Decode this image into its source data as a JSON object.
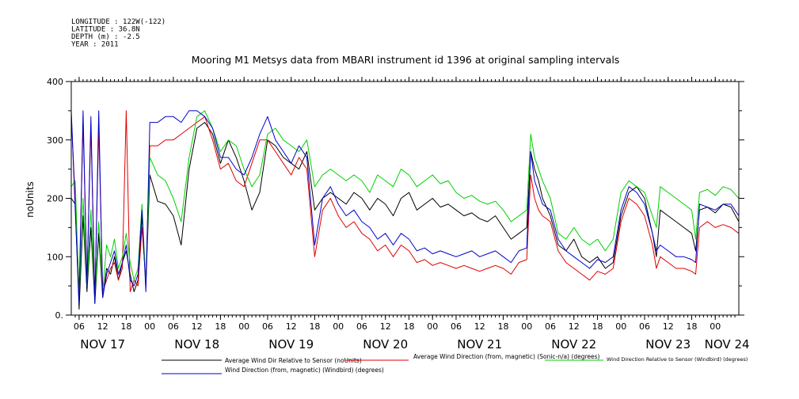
{
  "header": {
    "meta_lines": [
      "LONGITUDE : 122W(-122)",
      "LATITUDE : 36.8N",
      "DEPTH (m) : -2.5",
      "YEAR : 2011"
    ]
  },
  "chart_data": {
    "type": "line",
    "title": "Mooring M1 Metsys data from MBARI instrument id 1396 at original sampling intervals",
    "ylabel": "noUnits",
    "xlabel": "",
    "ylim": [
      0,
      400
    ],
    "y_ticks": [
      0,
      100,
      200,
      300,
      400
    ],
    "y_tick_labels": [
      "0.",
      "100",
      "200",
      "300",
      "400"
    ],
    "x_range_hours": [
      0,
      170
    ],
    "x_hour_ticks": [
      {
        "h": 2,
        "label": "06"
      },
      {
        "h": 8,
        "label": "12"
      },
      {
        "h": 14,
        "label": "18"
      },
      {
        "h": 20,
        "label": "00"
      },
      {
        "h": 26,
        "label": "06"
      },
      {
        "h": 32,
        "label": "12"
      },
      {
        "h": 38,
        "label": "18"
      },
      {
        "h": 44,
        "label": "00"
      },
      {
        "h": 50,
        "label": "06"
      },
      {
        "h": 56,
        "label": "12"
      },
      {
        "h": 62,
        "label": "18"
      },
      {
        "h": 68,
        "label": "00"
      },
      {
        "h": 74,
        "label": "06"
      },
      {
        "h": 80,
        "label": "12"
      },
      {
        "h": 86,
        "label": "18"
      },
      {
        "h": 92,
        "label": "00"
      },
      {
        "h": 98,
        "label": "06"
      },
      {
        "h": 104,
        "label": "12"
      },
      {
        "h": 110,
        "label": "18"
      },
      {
        "h": 116,
        "label": "00"
      },
      {
        "h": 122,
        "label": "06"
      },
      {
        "h": 128,
        "label": "12"
      },
      {
        "h": 134,
        "label": "18"
      },
      {
        "h": 140,
        "label": "00"
      },
      {
        "h": 146,
        "label": "06"
      },
      {
        "h": 152,
        "label": "12"
      },
      {
        "h": 158,
        "label": "18"
      },
      {
        "h": 164,
        "label": "00"
      }
    ],
    "day_labels": [
      {
        "h": 8,
        "label": "NOV 17"
      },
      {
        "h": 32,
        "label": "NOV 18"
      },
      {
        "h": 56,
        "label": "NOV 19"
      },
      {
        "h": 80,
        "label": "NOV 20"
      },
      {
        "h": 104,
        "label": "NOV 21"
      },
      {
        "h": 128,
        "label": "NOV 22"
      },
      {
        "h": 152,
        "label": "NOV 23"
      },
      {
        "h": 167,
        "label": "NOV 24"
      }
    ],
    "grid": false,
    "legend_position": "bottom",
    "series": [
      {
        "name": "Average Wind Dir Relative to Sensor (noUnits)",
        "color": "#000000",
        "x": [
          0,
          1,
          2,
          3,
          4,
          5,
          6,
          7,
          8,
          9,
          10,
          11,
          12,
          13,
          14,
          15,
          16,
          17,
          18,
          19,
          20,
          22,
          24,
          26,
          28,
          30,
          32,
          34,
          36,
          38,
          40,
          42,
          44,
          46,
          48,
          50,
          52,
          54,
          56,
          58,
          60,
          62,
          64,
          66,
          68,
          70,
          72,
          74,
          76,
          78,
          80,
          82,
          84,
          86,
          88,
          90,
          92,
          94,
          96,
          98,
          100,
          102,
          104,
          106,
          108,
          110,
          112,
          114,
          116,
          117,
          118,
          119,
          120,
          122,
          124,
          126,
          128,
          130,
          132,
          134,
          136,
          138,
          140,
          142,
          144,
          146,
          148,
          149,
          150,
          152,
          154,
          156,
          158,
          159,
          160,
          162,
          164,
          166,
          168,
          170
        ],
        "y": [
          200,
          190,
          10,
          170,
          40,
          150,
          20,
          140,
          30,
          80,
          70,
          100,
          60,
          90,
          110,
          70,
          40,
          60,
          170,
          50,
          240,
          195,
          190,
          170,
          120,
          250,
          320,
          330,
          310,
          260,
          300,
          270,
          230,
          180,
          210,
          300,
          290,
          270,
          260,
          250,
          280,
          180,
          200,
          210,
          200,
          190,
          210,
          200,
          180,
          200,
          190,
          170,
          200,
          210,
          180,
          190,
          200,
          185,
          190,
          180,
          170,
          175,
          165,
          160,
          170,
          150,
          130,
          140,
          150,
          280,
          250,
          230,
          200,
          170,
          120,
          110,
          130,
          100,
          90,
          100,
          80,
          90,
          170,
          210,
          220,
          200,
          140,
          100,
          180,
          170,
          160,
          150,
          140,
          110,
          180,
          185,
          175,
          190,
          185,
          160
        ]
      },
      {
        "name": "Average Wind Direction (from, magnetic) (Sonic-n/a) (degrees)",
        "color": "#e00000",
        "x": [
          0,
          1,
          2,
          3,
          4,
          5,
          6,
          7,
          8,
          9,
          10,
          11,
          12,
          13,
          14,
          15,
          16,
          17,
          18,
          19,
          20,
          22,
          24,
          26,
          28,
          30,
          32,
          34,
          36,
          38,
          40,
          42,
          44,
          46,
          48,
          50,
          52,
          54,
          56,
          58,
          60,
          62,
          64,
          66,
          68,
          70,
          72,
          74,
          76,
          78,
          80,
          82,
          84,
          86,
          88,
          90,
          92,
          94,
          96,
          98,
          100,
          102,
          104,
          106,
          108,
          110,
          112,
          114,
          116,
          117,
          118,
          119,
          120,
          122,
          124,
          126,
          128,
          130,
          132,
          134,
          136,
          138,
          140,
          142,
          144,
          146,
          148,
          149,
          150,
          152,
          154,
          156,
          158,
          159,
          160,
          162,
          164,
          166,
          168,
          170
        ],
        "y": [
          340,
          200,
          40,
          330,
          60,
          320,
          30,
          320,
          40,
          60,
          80,
          90,
          60,
          80,
          350,
          40,
          60,
          50,
          150,
          60,
          290,
          290,
          300,
          300,
          310,
          320,
          330,
          340,
          300,
          250,
          260,
          230,
          220,
          260,
          300,
          300,
          280,
          260,
          240,
          270,
          250,
          100,
          180,
          200,
          170,
          150,
          160,
          140,
          130,
          110,
          120,
          100,
          120,
          110,
          90,
          95,
          85,
          90,
          85,
          80,
          85,
          80,
          75,
          80,
          85,
          80,
          70,
          90,
          95,
          240,
          200,
          180,
          170,
          160,
          110,
          90,
          80,
          70,
          60,
          75,
          70,
          80,
          160,
          200,
          190,
          170,
          120,
          80,
          100,
          90,
          80,
          80,
          75,
          70,
          150,
          160,
          150,
          155,
          150,
          140
        ]
      },
      {
        "name": "Wind Direction Relative to Sensor (Windbird) (degrees)",
        "color": "#00d000",
        "x": [
          0,
          1,
          2,
          3,
          4,
          5,
          6,
          7,
          8,
          9,
          10,
          11,
          12,
          13,
          14,
          15,
          16,
          17,
          18,
          19,
          20,
          22,
          24,
          26,
          28,
          30,
          32,
          34,
          36,
          38,
          40,
          42,
          44,
          46,
          48,
          50,
          52,
          54,
          56,
          58,
          60,
          62,
          64,
          66,
          68,
          70,
          72,
          74,
          76,
          78,
          80,
          82,
          84,
          86,
          88,
          90,
          92,
          94,
          96,
          98,
          100,
          102,
          104,
          106,
          108,
          110,
          112,
          114,
          116,
          117,
          118,
          119,
          120,
          122,
          124,
          126,
          128,
          130,
          132,
          134,
          136,
          138,
          140,
          142,
          144,
          146,
          148,
          149,
          150,
          152,
          154,
          156,
          158,
          159,
          160,
          162,
          164,
          166,
          168,
          170
        ],
        "y": [
          220,
          230,
          30,
          200,
          50,
          180,
          30,
          160,
          40,
          120,
          100,
          130,
          80,
          100,
          140,
          90,
          60,
          80,
          190,
          50,
          270,
          240,
          230,
          200,
          160,
          270,
          340,
          350,
          320,
          280,
          300,
          290,
          250,
          220,
          240,
          310,
          320,
          300,
          290,
          280,
          300,
          220,
          240,
          250,
          240,
          230,
          240,
          230,
          210,
          240,
          230,
          220,
          250,
          240,
          220,
          230,
          240,
          225,
          230,
          210,
          200,
          205,
          195,
          190,
          195,
          180,
          160,
          170,
          180,
          310,
          270,
          250,
          230,
          200,
          140,
          130,
          150,
          130,
          120,
          130,
          110,
          130,
          210,
          230,
          220,
          210,
          170,
          150,
          220,
          210,
          200,
          190,
          180,
          130,
          210,
          215,
          205,
          220,
          215,
          200
        ]
      },
      {
        "name": "Wind Direction (from, magnetic) (Windbird) (degrees)",
        "color": "#0000cc",
        "x": [
          0,
          1,
          2,
          3,
          4,
          5,
          6,
          7,
          8,
          9,
          10,
          11,
          12,
          13,
          14,
          15,
          16,
          17,
          18,
          19,
          20,
          22,
          24,
          26,
          28,
          30,
          32,
          34,
          36,
          38,
          40,
          42,
          44,
          46,
          48,
          50,
          52,
          54,
          56,
          58,
          60,
          62,
          64,
          66,
          68,
          70,
          72,
          74,
          76,
          78,
          80,
          82,
          84,
          86,
          88,
          90,
          92,
          94,
          96,
          98,
          100,
          102,
          104,
          106,
          108,
          110,
          112,
          114,
          116,
          117,
          118,
          119,
          120,
          122,
          124,
          126,
          128,
          130,
          132,
          134,
          136,
          138,
          140,
          142,
          144,
          146,
          148,
          149,
          150,
          152,
          154,
          156,
          158,
          159,
          160,
          162,
          164,
          166,
          168,
          170
        ],
        "y": [
          350,
          180,
          20,
          350,
          50,
          340,
          20,
          350,
          30,
          70,
          90,
          110,
          70,
          90,
          120,
          60,
          50,
          70,
          180,
          40,
          330,
          330,
          340,
          340,
          330,
          350,
          350,
          340,
          320,
          270,
          270,
          250,
          240,
          270,
          310,
          340,
          300,
          280,
          260,
          290,
          270,
          120,
          200,
          220,
          190,
          170,
          180,
          160,
          150,
          130,
          140,
          120,
          140,
          130,
          110,
          115,
          105,
          110,
          105,
          100,
          105,
          110,
          100,
          105,
          110,
          100,
          90,
          110,
          115,
          280,
          230,
          210,
          190,
          180,
          130,
          110,
          100,
          90,
          80,
          95,
          90,
          100,
          180,
          220,
          210,
          190,
          140,
          110,
          120,
          110,
          100,
          100,
          95,
          90,
          190,
          185,
          180,
          190,
          190,
          170
        ]
      }
    ]
  }
}
